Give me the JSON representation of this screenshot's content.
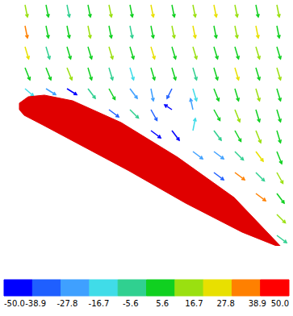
{
  "chart_data": {
    "type": "vector_field",
    "xlim": [
      0,
      340
    ],
    "ylim": [
      0,
      300
    ],
    "tick_labels": false,
    "grid": false,
    "x": [
      13,
      39,
      65,
      91,
      117,
      143,
      169,
      195,
      221,
      247,
      273,
      299,
      325
    ],
    "y": [
      299,
      273,
      247,
      221,
      195,
      169,
      143,
      117,
      91,
      65,
      39,
      13
    ],
    "u": [
      [
        0.2,
        0.2,
        0.2,
        0.2,
        0.2,
        0.2,
        0.2,
        0.2,
        0.2,
        0.2,
        0.2,
        0.2,
        0.2
      ],
      [
        0.2,
        0.2,
        0.2,
        0.2,
        0.2,
        0.2,
        0.2,
        0.2,
        0.2,
        0.2,
        0.2,
        0.2,
        0.2
      ],
      [
        0.3,
        0.3,
        0.3,
        0.3,
        0.3,
        0.3,
        0.3,
        0.3,
        0.3,
        0.3,
        0.3,
        0.3,
        0.3
      ],
      [
        0.4,
        0.4,
        0.4,
        0.3,
        0.3,
        0.3,
        0.3,
        0.3,
        0.3,
        0.3,
        0.3,
        0.3,
        0.3
      ],
      [
        0.7,
        0.8,
        0.8,
        0.6,
        0.5,
        0.6,
        0.2,
        -0.4,
        0.3,
        0.4,
        0.3,
        0.3,
        0.3
      ],
      [
        null,
        null,
        null,
        null,
        0.8,
        0.7,
        0.5,
        -0.6,
        -0.2,
        0.5,
        0.4,
        0.3,
        0.3
      ],
      [
        null,
        null,
        null,
        null,
        null,
        null,
        0.8,
        0.6,
        0.2,
        0.6,
        0.5,
        0.4,
        0.3
      ],
      [
        null,
        null,
        null,
        null,
        null,
        null,
        null,
        null,
        0.8,
        0.8,
        0.7,
        0.6,
        0.4
      ],
      [
        null,
        null,
        null,
        null,
        null,
        null,
        null,
        null,
        null,
        0.8,
        0.8,
        0.7,
        0.5
      ],
      [
        null,
        null,
        null,
        null,
        null,
        null,
        null,
        null,
        null,
        null,
        null,
        0.8,
        0.6
      ],
      [
        null,
        null,
        null,
        null,
        null,
        null,
        null,
        null,
        null,
        null,
        null,
        null,
        0.7
      ],
      [
        null,
        null,
        null,
        null,
        null,
        null,
        null,
        null,
        null,
        null,
        null,
        null,
        0.8
      ]
    ],
    "v": [
      [
        -1,
        -1,
        -1,
        -1,
        -1,
        -1,
        -1,
        -1,
        -1,
        -1,
        -1,
        -1,
        -1
      ],
      [
        -1,
        -1,
        -1,
        -1,
        -1,
        -1,
        -1,
        -1,
        -1,
        -1,
        -1,
        -1,
        -1
      ],
      [
        -1,
        -1,
        -1,
        -1,
        -1,
        -1,
        -1,
        -1,
        -1,
        -1,
        -1,
        -1,
        -1
      ],
      [
        -1,
        -1,
        -1,
        -1,
        -1,
        -1,
        -1,
        -1,
        -1,
        -1,
        -1,
        -1,
        -1
      ],
      [
        -0.6,
        -0.5,
        -0.5,
        -0.8,
        -0.9,
        -0.8,
        -1,
        -0.8,
        -1,
        -1,
        -1,
        -1,
        -1
      ],
      [
        null,
        null,
        null,
        null,
        -0.6,
        -0.7,
        -0.9,
        0.4,
        0.9,
        -0.9,
        -1,
        -1,
        -1
      ],
      [
        null,
        null,
        null,
        null,
        null,
        null,
        -0.6,
        -0.8,
        1,
        -0.8,
        -0.9,
        -1,
        -1
      ],
      [
        null,
        null,
        null,
        null,
        null,
        null,
        null,
        null,
        -0.6,
        -0.6,
        -0.7,
        -0.8,
        -1
      ],
      [
        null,
        null,
        null,
        null,
        null,
        null,
        null,
        null,
        null,
        -0.6,
        -0.6,
        -0.7,
        -0.9
      ],
      [
        null,
        null,
        null,
        null,
        null,
        null,
        null,
        null,
        null,
        null,
        null,
        -0.6,
        -0.8
      ],
      [
        null,
        null,
        null,
        null,
        null,
        null,
        null,
        null,
        null,
        null,
        null,
        null,
        -0.7
      ],
      [
        null,
        null,
        null,
        null,
        null,
        null,
        null,
        null,
        null,
        null,
        null,
        null,
        -0.6
      ]
    ],
    "values": [
      [
        10,
        5,
        -5,
        5,
        15,
        5,
        20,
        5,
        15,
        25,
        10,
        5,
        15
      ],
      [
        30,
        5,
        5,
        15,
        5,
        -5,
        5,
        10,
        20,
        5,
        15,
        25,
        5
      ],
      [
        25,
        -5,
        5,
        5,
        15,
        5,
        20,
        5,
        10,
        5,
        5,
        15,
        5
      ],
      [
        5,
        5,
        15,
        5,
        -10,
        -20,
        5,
        5,
        -5,
        5,
        20,
        5,
        15
      ],
      [
        -15,
        -30,
        -45,
        -5,
        5,
        -25,
        -30,
        -40,
        -20,
        5,
        5,
        10,
        5
      ],
      [
        null,
        null,
        null,
        null,
        -40,
        -10,
        -35,
        -45,
        -30,
        5,
        15,
        5,
        5
      ],
      [
        null,
        null,
        null,
        null,
        null,
        null,
        -45,
        -45,
        -20,
        -10,
        5,
        15,
        5
      ],
      [
        null,
        null,
        null,
        null,
        null,
        null,
        null,
        null,
        -25,
        -30,
        -5,
        20,
        5
      ],
      [
        null,
        null,
        null,
        null,
        null,
        null,
        null,
        null,
        null,
        -40,
        30,
        -10,
        15
      ],
      [
        null,
        null,
        null,
        null,
        null,
        null,
        null,
        null,
        null,
        null,
        null,
        35,
        5
      ],
      [
        null,
        null,
        null,
        null,
        null,
        null,
        null,
        null,
        null,
        null,
        null,
        null,
        10
      ],
      [
        null,
        null,
        null,
        null,
        null,
        null,
        null,
        null,
        null,
        null,
        null,
        null,
        -5
      ]
    ],
    "airfoil": {
      "x": [
        6,
        17,
        37,
        72,
        132,
        202,
        272,
        332,
        282,
        212,
        142,
        82,
        37,
        12,
        6
      ],
      "y": [
        177,
        185,
        187,
        180,
        153,
        110,
        60,
        -3,
        17,
        53,
        93,
        125,
        149,
        162,
        169
      ],
      "color": "#e00000"
    },
    "color_bar": {
      "range": [
        -50,
        50
      ],
      "ticks": [
        {
          "value": -50,
          "label": "-50.0"
        },
        -38.9,
        -27.8,
        -16.7,
        -5.6,
        5.6,
        16.7,
        27.8,
        38.9,
        {
          "value": 50,
          "label": "50.0"
        }
      ],
      "colors": [
        "#0000ff",
        "#1f5fff",
        "#3fa0ff",
        "#40dce8",
        "#30d090",
        "#10d020",
        "#9ae010",
        "#e8e000",
        "#ff8000",
        "#ff0000"
      ]
    }
  }
}
